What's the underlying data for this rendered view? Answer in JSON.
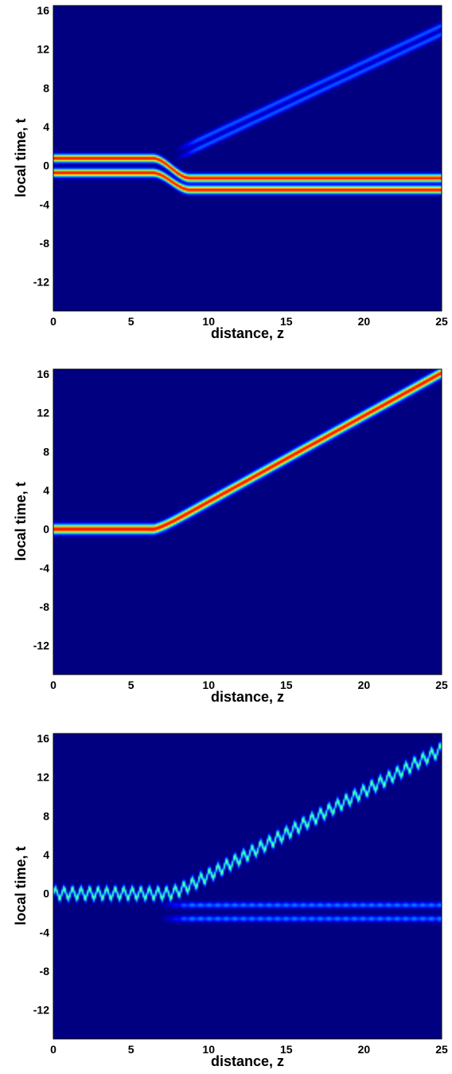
{
  "chart_data": [
    {
      "type": "heatmap",
      "panel": "top",
      "xlabel": "distance, z",
      "ylabel": "local time, t",
      "xlim": [
        0,
        25
      ],
      "ylim": [
        -15,
        16.5
      ],
      "xticks": [
        0,
        5,
        10,
        15,
        20,
        25
      ],
      "xtick_labels": [
        "0",
        "5",
        "10",
        "15",
        "20",
        "25"
      ],
      "yticks": [
        16,
        12,
        8,
        4,
        0,
        -4,
        -8,
        -12
      ],
      "ytick_labels": [
        "16",
        "12",
        "8",
        "4",
        "0",
        "-4",
        "-8",
        "-12"
      ],
      "colormap": "jet",
      "background_color": "#00008f",
      "grid": false,
      "features": [
        {
          "name": "incoming two-lobe pulse",
          "t_center_start": 0,
          "z_split": 8,
          "lobe_offsets_t": [
            -0.75,
            0.75
          ],
          "peak_intensity": 1.0
        },
        {
          "name": "trapped two-lobe pulse",
          "t_center": -1.9,
          "z_start": 8,
          "z_end": 25,
          "lobe_offsets_t": [
            -0.6,
            0.6
          ],
          "peak_intensity": 1.0
        },
        {
          "name": "weak escaping branch",
          "t_at_z8": 1.2,
          "t_at_z25": 14,
          "peak_intensity": 0.25
        }
      ]
    },
    {
      "type": "heatmap",
      "panel": "middle",
      "xlabel": "distance, z",
      "ylabel": "local time, t",
      "xlim": [
        0,
        25
      ],
      "ylim": [
        -15,
        16.5
      ],
      "xticks": [
        0,
        5,
        10,
        15,
        20,
        25
      ],
      "xtick_labels": [
        "0",
        "5",
        "10",
        "15",
        "20",
        "25"
      ],
      "yticks": [
        16,
        12,
        8,
        4,
        0,
        -4,
        -8,
        -12
      ],
      "ytick_labels": [
        "16",
        "12",
        "8",
        "4",
        "0",
        "-4",
        "-8",
        "-12"
      ],
      "colormap": "jet",
      "background_color": "#00008f",
      "grid": false,
      "features": [
        {
          "name": "single pulse",
          "t_center_start": 0,
          "z_turn": 6.5,
          "t_at_z25": 14,
          "peak_intensity": 1.0
        }
      ]
    },
    {
      "type": "heatmap",
      "panel": "bottom",
      "xlabel": "distance, z",
      "ylabel": "local time, t",
      "xlim": [
        0,
        25
      ],
      "ylim": [
        -15,
        16.5
      ],
      "xticks": [
        0,
        5,
        10,
        15,
        20,
        25
      ],
      "xtick_labels": [
        "0",
        "5",
        "10",
        "15",
        "20",
        "25"
      ],
      "yticks": [
        16,
        12,
        8,
        4,
        0,
        -4,
        -8,
        -12
      ],
      "ytick_labels": [
        "16",
        "12",
        "8",
        "4",
        "0",
        "-4",
        "-8",
        "-12"
      ],
      "colormap": "jet",
      "background_color": "#00008f",
      "grid": false,
      "features": [
        {
          "name": "oscillating pulse",
          "t_center_start": 0,
          "oscillation_period_z": 0.55,
          "oscillation_amplitude_t": 0.5,
          "z_turn": 7.5,
          "t_at_z25": 14,
          "peak_intensity": 0.55
        },
        {
          "name": "weak trapped pair",
          "t_centers": [
            -1.2,
            -2.6
          ],
          "z_start": 7.5,
          "z_end": 25,
          "peak_intensity": 0.3
        }
      ]
    }
  ]
}
